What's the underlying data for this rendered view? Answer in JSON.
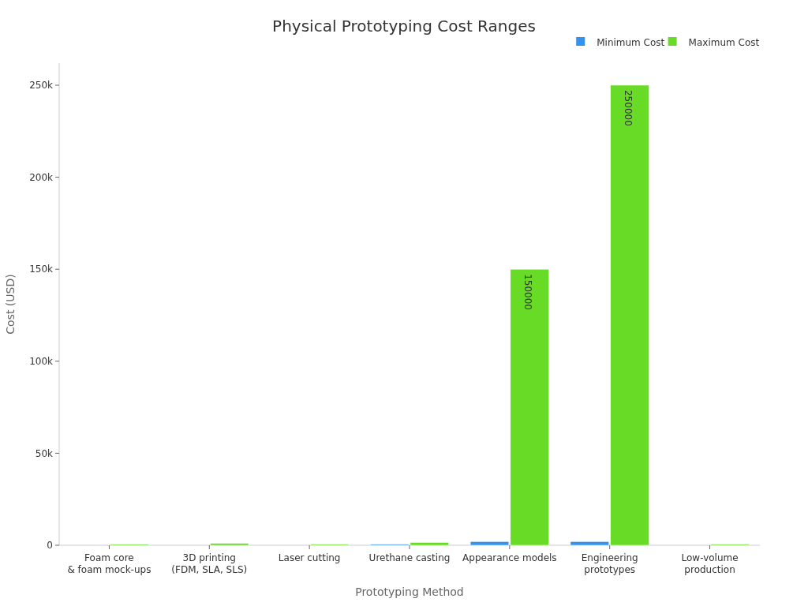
{
  "chart_data": {
    "type": "bar",
    "title": "Physical Prototyping Cost Ranges",
    "xlabel": "Prototyping Method",
    "ylabel": "Cost (USD)",
    "categories": [
      "Foam core\n& foam mock-ups",
      "3D printing\n(FDM, SLA, SLS)",
      "Laser cutting",
      "Urethane casting",
      "Appearance models",
      "Engineering\nprototypes",
      "Low-volume\nproduction"
    ],
    "series": [
      {
        "name": "Minimum Cost",
        "color": "#3392ee",
        "values": [
          null,
          null,
          null,
          500,
          2000,
          2000,
          null
        ],
        "value_labels": [
          null,
          null,
          null,
          null,
          null,
          null,
          null
        ]
      },
      {
        "name": "Maximum Cost",
        "color": "#67db26",
        "values": [
          500,
          1000,
          500,
          1500,
          150000,
          250000,
          500
        ],
        "value_labels": [
          null,
          null,
          null,
          null,
          "150000",
          "250000",
          null
        ]
      }
    ],
    "ylim": [
      0,
      262000
    ],
    "yticks": [
      {
        "value": 0,
        "label": "0"
      },
      {
        "value": 50000,
        "label": "50k"
      },
      {
        "value": 100000,
        "label": "100k"
      },
      {
        "value": 150000,
        "label": "150k"
      },
      {
        "value": 200000,
        "label": "200k"
      },
      {
        "value": 250000,
        "label": "250k"
      }
    ],
    "grid": false,
    "legend": "top right"
  }
}
